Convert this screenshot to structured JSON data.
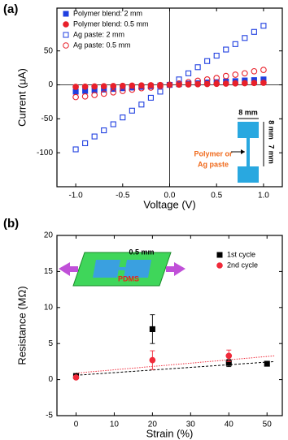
{
  "chart_data": [
    {
      "type": "scatter",
      "panel_label": "(a)",
      "x_label": "Voltage (V)",
      "y_label": "Current (μA)",
      "xlim": [
        -1.2,
        1.2
      ],
      "ylim": [
        -150,
        113
      ],
      "xticks": [
        {
          "value": -1.0,
          "label": "-1.0"
        },
        {
          "value": -0.5,
          "label": "-0.5"
        },
        {
          "value": 0,
          "label": "0.0"
        },
        {
          "value": 0.5,
          "label": "0.5"
        },
        {
          "value": 1.0,
          "label": "1.0"
        }
      ],
      "yticks": [
        -100,
        -50,
        0,
        50
      ],
      "zero_lines": true,
      "legend": "upper left",
      "x": [
        -1.0,
        -0.9,
        -0.8,
        -0.7,
        -0.6,
        -0.5,
        -0.4,
        -0.3,
        -0.2,
        -0.1,
        0,
        0.1,
        0.2,
        0.3,
        0.4,
        0.5,
        0.6,
        0.7,
        0.8,
        0.9,
        1.0
      ],
      "series": [
        {
          "name": "Polymer blend: 2 mm",
          "color": "#1f3fe0",
          "marker": "square",
          "filled": true,
          "values": [
            -10,
            -9,
            -8,
            -7,
            -6,
            -5,
            -4,
            -3,
            -2,
            -1,
            0,
            1,
            2,
            2.5,
            3.5,
            4,
            5,
            5.5,
            6.5,
            7,
            8
          ]
        },
        {
          "name": "Polymer blend: 0.5 mm",
          "color": "#e8202a",
          "marker": "circle",
          "filled": true,
          "values": [
            -3,
            -2.7,
            -2.4,
            -2.1,
            -1.8,
            -1.5,
            -1.2,
            -0.9,
            -0.6,
            -0.3,
            0,
            0.3,
            0.6,
            0.9,
            1.2,
            1.5,
            1.8,
            2.1,
            2.4,
            2.7,
            3
          ]
        },
        {
          "name": "Ag paste: 2 mm",
          "color": "#1f3fe0",
          "marker": "square",
          "filled": false,
          "values": [
            -95,
            -86,
            -76,
            -67,
            -58,
            -48,
            -38,
            -29,
            -19,
            -10,
            0,
            8,
            17,
            26,
            35,
            43,
            52,
            60,
            69,
            78,
            87
          ]
        },
        {
          "name": "Ag paste: 0.5 mm",
          "color": "#e8202a",
          "marker": "circle",
          "filled": false,
          "values": [
            -18,
            -17,
            -15,
            -13,
            -11,
            -9,
            -7,
            -5,
            -4,
            -2,
            0,
            2,
            4,
            6,
            8,
            10,
            13,
            15,
            17,
            20,
            22
          ]
        }
      ],
      "annotations": [
        "8 mm",
        "8 mm",
        "7 mm",
        "Polymer or",
        "Ag paste"
      ]
    },
    {
      "type": "scatter",
      "panel_label": "(b)",
      "x_label": "Strain (%)",
      "y_label": "Resistance (MΩ)",
      "xlim": [
        -5,
        54
      ],
      "ylim": [
        -5,
        20
      ],
      "xticks": [
        0,
        10,
        20,
        30,
        40,
        50
      ],
      "yticks": [
        -5,
        0,
        5,
        10,
        15,
        20
      ],
      "zero_lines": false,
      "legend": "upper right",
      "series": [
        {
          "name": "1st cycle",
          "color": "#000000",
          "marker": "square",
          "filled": true,
          "x": [
            0,
            20,
            40,
            50
          ],
          "values": [
            0.5,
            7,
            2.3,
            2.2
          ],
          "errors": [
            0.2,
            2,
            0.5,
            0.3
          ]
        },
        {
          "name": "2nd cycle",
          "color": "#f02a3a",
          "marker": "circle",
          "filled": true,
          "x": [
            0,
            20,
            40
          ],
          "values": [
            0.3,
            2.7,
            3.3
          ],
          "errors": [
            0.2,
            1.3,
            0.8
          ]
        }
      ],
      "fits": [
        {
          "color": "#000000",
          "dash": "3,2",
          "x": [
            0,
            52
          ],
          "values": [
            0.6,
            2.5
          ]
        },
        {
          "color": "#f02a3a",
          "dash": "1.5,1.5",
          "x": [
            0,
            52
          ],
          "values": [
            0.9,
            3.3
          ]
        }
      ],
      "annotations": [
        "0.5 mm",
        "PDMS"
      ]
    }
  ]
}
